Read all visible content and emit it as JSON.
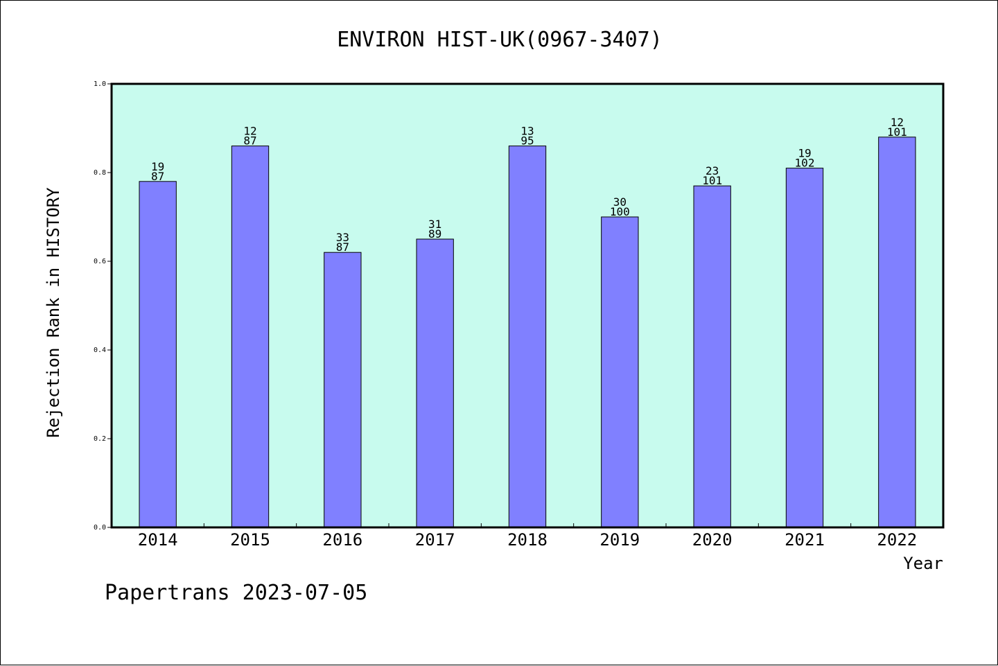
{
  "chart_data": {
    "type": "bar",
    "title": "ENVIRON HIST-UK(0967-3407)",
    "xlabel": "Year",
    "ylabel": "Rejection Rank in HISTORY",
    "ylim": [
      0,
      1.0
    ],
    "yticks": [
      "0.0",
      "0.2",
      "0.4",
      "0.6",
      "0.8",
      "1.0"
    ],
    "categories": [
      "2014",
      "2015",
      "2016",
      "2017",
      "2018",
      "2019",
      "2020",
      "2021",
      "2022"
    ],
    "values": [
      0.78,
      0.86,
      0.62,
      0.65,
      0.86,
      0.7,
      0.77,
      0.81,
      0.88
    ],
    "label_top": [
      "19",
      "12",
      "33",
      "31",
      "13",
      "30",
      "23",
      "19",
      "12"
    ],
    "label_bottom": [
      "87",
      "87",
      "87",
      "89",
      "95",
      "100",
      "101",
      "102",
      "101"
    ],
    "grid": false,
    "colors": {
      "plot_background": "#c8fbee",
      "bar": "#8080ff"
    }
  },
  "footer": "Papertrans 2023-07-05"
}
